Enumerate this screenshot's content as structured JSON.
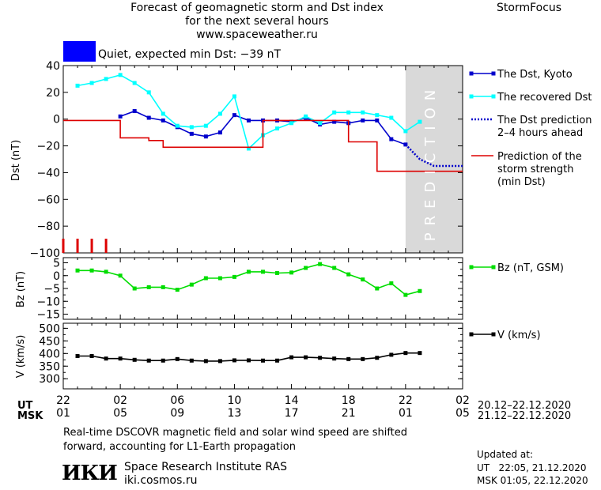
{
  "header": {
    "title_lines": [
      "Forecast of geomagnetic storm and Dst index",
      "for the next several hours",
      "www.spaceweather.ru"
    ],
    "brand": "StormFocus",
    "status_text": "Quiet, expected min Dst: −39 nT",
    "status_color": "#0000ff"
  },
  "footer": {
    "note_lines": [
      "Real-time DSCOVR magnetic field and solar wind speed are shifted",
      "forward, accounting for L1-Earth propagation"
    ],
    "institute": "Space Research Institute RAS",
    "site": "iki.cosmos.ru",
    "logo_text": "ИКИ",
    "updated_label": "Updated at:",
    "updated_ut": "UT   22:05, 21.12.2020",
    "updated_msk": "MSK 01:05, 22.12.2020"
  },
  "time_axis": {
    "ut_label": "UT",
    "msk_label": "MSK",
    "ut_ticks": [
      "22",
      "02",
      "06",
      "10",
      "14",
      "18",
      "22",
      "02"
    ],
    "msk_ticks": [
      "01",
      "05",
      "09",
      "13",
      "17",
      "21",
      "01",
      "05"
    ],
    "ut_range": "20.12–22.12.2020",
    "msk_range": "21.12–22.12.2020"
  },
  "chart_data": [
    {
      "type": "line",
      "panel": "dst",
      "ylabel": "Dst (nT)",
      "ylim": [
        -100,
        40
      ],
      "yticks": [
        40,
        20,
        0,
        -20,
        -40,
        -60,
        -80,
        -100
      ],
      "x_unit": "hours after 22 UT 20.12.2020",
      "xlim": [
        0,
        28
      ],
      "prediction_band": {
        "x": [
          24,
          28
        ],
        "label": "PREDICTION"
      },
      "series": [
        {
          "name": "The Dst, Kyoto",
          "color": "#0000cc",
          "marker": "square",
          "style": "solid",
          "x": [
            4,
            5,
            6,
            7,
            8,
            9,
            10,
            11,
            12,
            13,
            14,
            15,
            16,
            17,
            18,
            19,
            20,
            21,
            22,
            23,
            24
          ],
          "y": [
            2,
            6,
            1,
            -1,
            -6,
            -11,
            -13,
            -10,
            3,
            -1,
            -1,
            -1,
            -2,
            1,
            -4,
            -2,
            -3,
            -1,
            -1,
            -15,
            -19
          ]
        },
        {
          "name": "The recovered Dst",
          "color": "#00ffff",
          "marker": "square",
          "style": "solid",
          "x": [
            1,
            2,
            3,
            4,
            5,
            6,
            7,
            8,
            9,
            10,
            11,
            12,
            13,
            14,
            15,
            16,
            17,
            18,
            19,
            20,
            21,
            22,
            23,
            24,
            25
          ],
          "y": [
            25,
            27,
            30,
            33,
            27,
            20,
            4,
            -5,
            -6,
            -5,
            4,
            17,
            -22,
            -12,
            -7,
            -3,
            2,
            -3,
            5,
            5,
            5,
            3,
            1,
            -9,
            -2
          ]
        },
        {
          "name": "The Dst prediction\n2–4 hours ahead",
          "color": "#0000cc",
          "marker": "none",
          "style": "dotted",
          "x": [
            24,
            25,
            26,
            27,
            28
          ],
          "y": [
            -19,
            -30,
            -35,
            -35,
            -35
          ]
        },
        {
          "name": "Prediction of the\nstorm strength\n(min Dst)",
          "color": "#dd0000",
          "marker": "none",
          "style": "step",
          "x": [
            0,
            4,
            4,
            6,
            6,
            7,
            7,
            11,
            11,
            14,
            14,
            20,
            20,
            21,
            21,
            22,
            22,
            28
          ],
          "y": [
            -1,
            -1,
            -14,
            -14,
            -16,
            -16,
            -21,
            -21,
            -21,
            -21,
            -1,
            -1,
            -17,
            -17,
            -17,
            -17,
            -39,
            -39
          ]
        }
      ],
      "storm_markers_x": [
        0,
        1,
        2,
        3
      ]
    },
    {
      "type": "line",
      "panel": "bz",
      "ylabel": "Bz (nT)",
      "ylim": [
        -17,
        7
      ],
      "yticks": [
        5,
        0,
        -5,
        -10,
        -15
      ],
      "series": [
        {
          "name": "Bz (nT, GSM)",
          "color": "#00dd00",
          "marker": "square",
          "style": "solid",
          "x": [
            1,
            2,
            3,
            4,
            5,
            6,
            7,
            8,
            9,
            10,
            11,
            12,
            13,
            14,
            15,
            16,
            17,
            18,
            19,
            20,
            21,
            22,
            23,
            24,
            25
          ],
          "y": [
            2,
            2,
            1.5,
            0,
            -5,
            -4.5,
            -4.5,
            -5.5,
            -3.5,
            -1,
            -1,
            -0.5,
            1.5,
            1.5,
            1,
            1.2,
            3,
            4.5,
            3,
            0.5,
            -1.5,
            -5,
            -3,
            -7.5,
            -6
          ]
        }
      ]
    },
    {
      "type": "line",
      "panel": "v",
      "ylabel": "V (km/s)",
      "ylim": [
        260,
        520
      ],
      "yticks": [
        500,
        450,
        400,
        350,
        300
      ],
      "series": [
        {
          "name": "V (km/s)",
          "color": "#000000",
          "marker": "square",
          "style": "solid",
          "x": [
            1,
            2,
            3,
            4,
            5,
            6,
            7,
            8,
            9,
            10,
            11,
            12,
            13,
            14,
            15,
            16,
            17,
            18,
            19,
            20,
            21,
            22,
            23,
            24,
            25
          ],
          "y": [
            390,
            390,
            380,
            380,
            375,
            372,
            372,
            378,
            372,
            370,
            370,
            373,
            373,
            372,
            372,
            385,
            385,
            383,
            380,
            378,
            378,
            383,
            395,
            402,
            402
          ]
        }
      ]
    }
  ]
}
